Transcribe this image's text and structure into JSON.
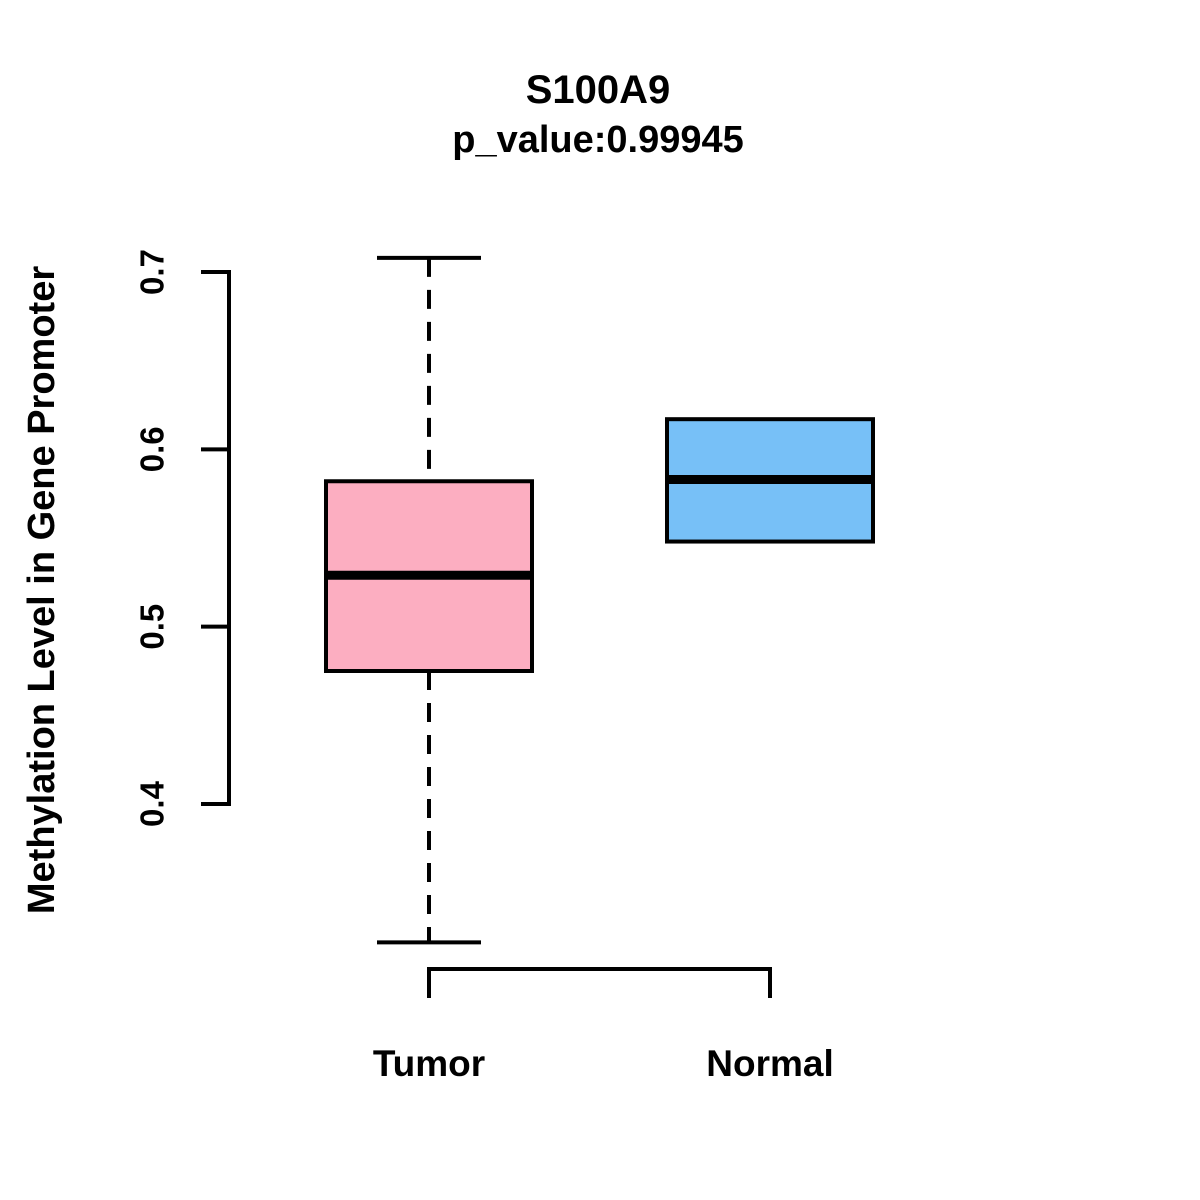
{
  "chart_data": {
    "type": "boxplot",
    "title": "S100A9",
    "subtitle": "p_value:0.99945",
    "ylabel": "Methylation Level in Gene Promoter",
    "xlabel": "",
    "y_axis": {
      "ticks": [
        0.4,
        0.5,
        0.6,
        0.7
      ],
      "tick_labels": [
        "0.4",
        "0.5",
        "0.6",
        "0.7"
      ],
      "range": [
        0.4,
        0.7
      ],
      "grid": false
    },
    "categories": [
      "Tumor",
      "Normal"
    ],
    "groups": [
      {
        "name": "Tumor",
        "color": "#FCAEC1",
        "border_color": "#000000",
        "whisker_style": "dashed",
        "stats": {
          "whisker_low": 0.322,
          "q1": 0.475,
          "median": 0.529,
          "q3": 0.582,
          "whisker_high": 0.708
        }
      },
      {
        "name": "Normal",
        "color": "#77C0F7",
        "border_color": "#000000",
        "whisker_style": "none",
        "stats": {
          "whisker_low": 0.548,
          "q1": 0.548,
          "median": 0.583,
          "q3": 0.617,
          "whisker_high": 0.617
        }
      }
    ],
    "legend": "none",
    "colors": {
      "foreground": "#000000",
      "background": "#FFFFFF"
    }
  }
}
